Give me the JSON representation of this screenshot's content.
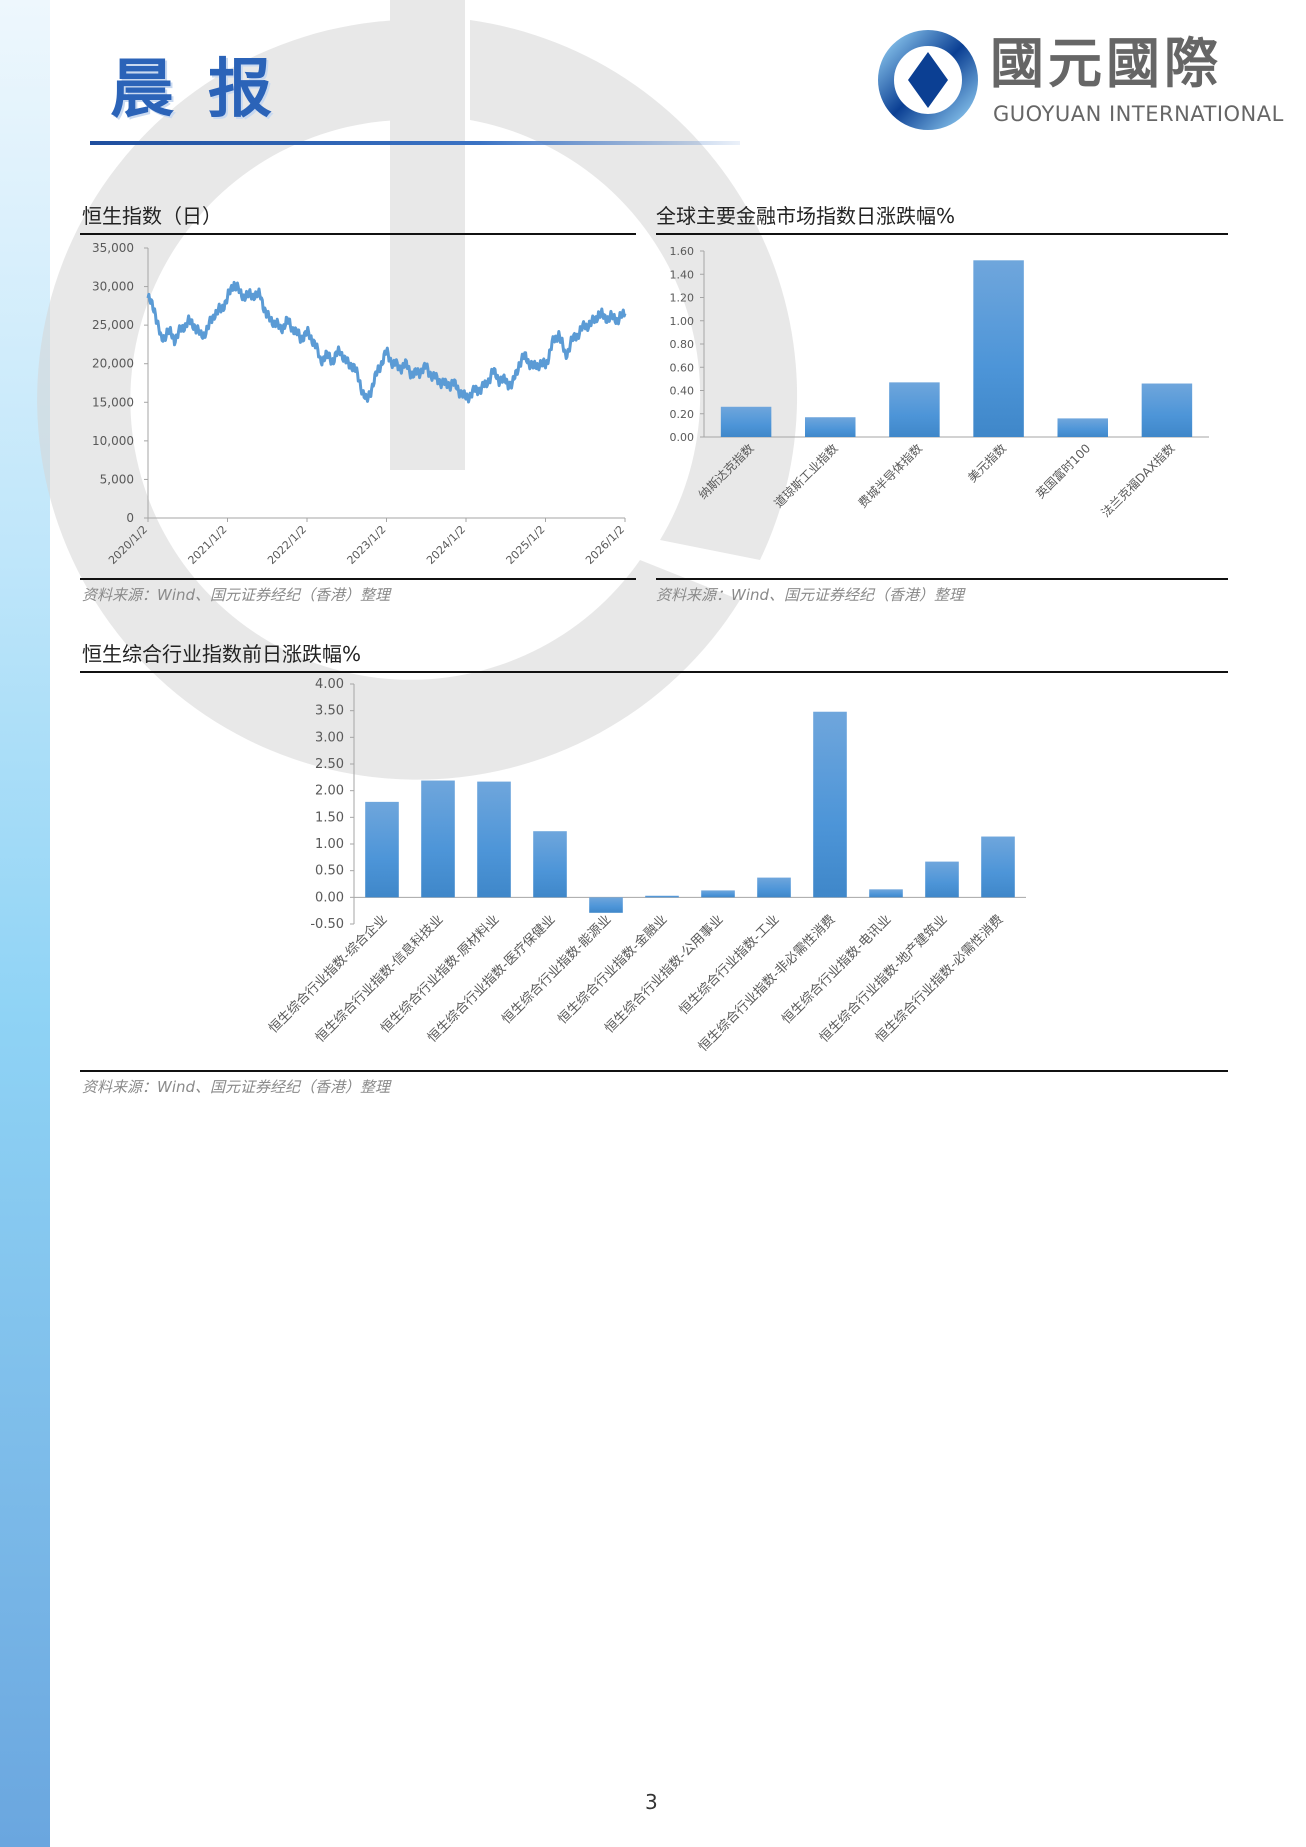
{
  "header": {
    "title": "晨报",
    "logo": {
      "cn": "國元國際",
      "en": "GUOYUAN INTERNATIONAL",
      "colors": {
        "dark_blue": "#0b3f93",
        "light_blue": "#8cc8ef",
        "gray": "#666666"
      }
    }
  },
  "source_text": "资料来源：Wind、国元证券经纪（香港）整理",
  "page_number": "3",
  "colors": {
    "bar": "#4a90d0",
    "line": "#5b9bd5",
    "strip": "#8fd3f5"
  },
  "chart_data": [
    {
      "id": "hsi",
      "type": "line",
      "title": "恒生指数（日）",
      "ylim": [
        0,
        35000
      ],
      "y_ticks": [
        "0",
        "5,000",
        "10,000",
        "15,000",
        "20,000",
        "25,000",
        "30,000",
        "35,000"
      ],
      "x_ticks": [
        "2020/1/2",
        "2021/1/2",
        "2022/1/2",
        "2023/1/2",
        "2024/1/2",
        "2025/1/2",
        "2026/1/2"
      ],
      "x": [
        "2020-01",
        "2020-02",
        "2020-03",
        "2020-04",
        "2020-05",
        "2020-06",
        "2020-07",
        "2020-08",
        "2020-09",
        "2020-10",
        "2020-11",
        "2020-12",
        "2021-01",
        "2021-02",
        "2021-03",
        "2021-04",
        "2021-05",
        "2021-06",
        "2021-07",
        "2021-08",
        "2021-09",
        "2021-10",
        "2021-11",
        "2021-12",
        "2022-01",
        "2022-02",
        "2022-03",
        "2022-04",
        "2022-05",
        "2022-06",
        "2022-07",
        "2022-08",
        "2022-09",
        "2022-10",
        "2022-11",
        "2022-12",
        "2023-01",
        "2023-02",
        "2023-03",
        "2023-04",
        "2023-05",
        "2023-06",
        "2023-07",
        "2023-08",
        "2023-09",
        "2023-10",
        "2023-11",
        "2023-12",
        "2024-01",
        "2024-02",
        "2024-03",
        "2024-04",
        "2024-05",
        "2024-06",
        "2024-07",
        "2024-08",
        "2024-09",
        "2024-10",
        "2024-11",
        "2024-12",
        "2025-01",
        "2025-02",
        "2025-03",
        "2025-04",
        "2025-05",
        "2025-06",
        "2025-07",
        "2025-08",
        "2025-09",
        "2025-10",
        "2025-11",
        "2025-12",
        "2026-01"
      ],
      "values": [
        28500,
        27000,
        23000,
        24300,
        23200,
        24400,
        25500,
        25000,
        23600,
        24500,
        26500,
        27000,
        28500,
        30500,
        29000,
        28800,
        29000,
        28800,
        26000,
        25500,
        24500,
        25500,
        24500,
        23300,
        24000,
        23000,
        20500,
        21000,
        20500,
        21800,
        20000,
        19800,
        17500,
        15000,
        17500,
        19700,
        21500,
        20000,
        19500,
        19800,
        18500,
        19000,
        19500,
        18300,
        17800,
        17200,
        17500,
        16500,
        15500,
        16300,
        16700,
        17200,
        19000,
        18000,
        17700,
        17200,
        20000,
        21000,
        19500,
        20000,
        19800,
        22500,
        24000,
        21000,
        23000,
        24000,
        25000,
        25200,
        26500,
        26000,
        26000,
        25800,
        26500
      ],
      "grid": false
    },
    {
      "id": "global",
      "type": "bar",
      "title": "全球主要金融市场指数日涨跌幅%",
      "ylim": [
        0,
        1.6
      ],
      "y_ticks": [
        "0.00",
        "0.20",
        "0.40",
        "0.60",
        "0.80",
        "1.00",
        "1.20",
        "1.40",
        "1.60"
      ],
      "categories": [
        "纳斯达克指数",
        "道琼斯工业指数",
        "费城半导体指数",
        "美元指数",
        "英国富时100",
        "法兰克福DAX指数"
      ],
      "values": [
        0.26,
        0.17,
        0.47,
        1.52,
        0.16,
        0.46
      ],
      "grid": false
    },
    {
      "id": "hsci",
      "type": "bar",
      "title": "恒生综合行业指数前日涨跌幅%",
      "ylim": [
        -0.5,
        4.0
      ],
      "y_ticks": [
        "-0.50",
        "0.00",
        "0.50",
        "1.00",
        "1.50",
        "2.00",
        "2.50",
        "3.00",
        "3.50",
        "4.00"
      ],
      "categories": [
        "恒生综合行业指数-综合企业",
        "恒生综合行业指数-信息科技业",
        "恒生综合行业指数-原材料业",
        "恒生综合行业指数-医疗保健业",
        "恒生综合行业指数-能源业",
        "恒生综合行业指数-金融业",
        "恒生综合行业指数-公用事业",
        "恒生综合行业指数-工业",
        "恒生综合行业指数-非必需性消费",
        "恒生综合行业指数-电讯业",
        "恒生综合行业指数-地产建筑业",
        "恒生综合行业指数-必需性消费"
      ],
      "values": [
        1.79,
        2.19,
        2.17,
        1.24,
        -0.29,
        0.03,
        0.13,
        0.37,
        3.48,
        0.15,
        0.67,
        1.14
      ],
      "grid": false
    }
  ]
}
